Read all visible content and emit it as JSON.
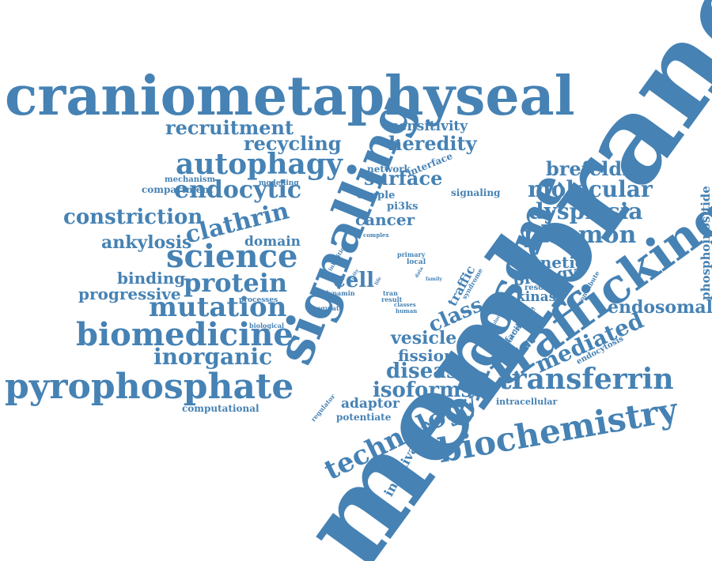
{
  "word_cloud": {
    "color": "#4682b4",
    "words": [
      {
        "text": "membrane",
        "size": 1,
        "rotation": "diagonal-up"
      },
      {
        "text": "craniometaphyseal",
        "size": 2,
        "rotation": "horizontal"
      },
      {
        "text": "signalling",
        "size": 3,
        "rotation": "diagonal-up"
      },
      {
        "text": "endosome",
        "size": 3,
        "rotation": "diagonal-up"
      },
      {
        "text": "trafficking",
        "size": 3,
        "rotation": "diagonal-up"
      },
      {
        "text": "pyrophosphate",
        "size": 3,
        "rotation": "horizontal"
      },
      {
        "text": "biochemistry",
        "size": 3,
        "rotation": "slight-tilt"
      },
      {
        "text": "science",
        "size": 3,
        "rotation": "horizontal"
      },
      {
        "text": "biomedicine",
        "size": 3,
        "rotation": "horizontal"
      },
      {
        "text": "autophagy",
        "size": 3,
        "rotation": "horizontal"
      },
      {
        "text": "technology",
        "size": 3,
        "rotation": "diagonal-up"
      },
      {
        "text": "transferrin",
        "size": 3,
        "rotation": "horizontal"
      },
      {
        "text": "mutation",
        "size": 3,
        "rotation": "horizontal"
      },
      {
        "text": "protein",
        "size": 3,
        "rotation": "horizontal"
      },
      {
        "text": "plasmon",
        "size": 4,
        "rotation": "horizontal"
      },
      {
        "text": "endocytic",
        "size": 4,
        "rotation": "horizontal"
      },
      {
        "text": "clathrin",
        "size": 4,
        "rotation": "diagonal-up"
      },
      {
        "text": "molecular",
        "size": 4,
        "rotation": "horizontal"
      },
      {
        "text": "dysplasia",
        "size": 4,
        "rotation": "horizontal"
      },
      {
        "text": "recruitment",
        "size": 4,
        "rotation": "horizontal"
      },
      {
        "text": "recycling",
        "size": 4,
        "rotation": "horizontal"
      },
      {
        "text": "heredity",
        "size": 4,
        "rotation": "horizontal"
      },
      {
        "text": "constriction",
        "size": 4,
        "rotation": "horizontal"
      },
      {
        "text": "inorganic",
        "size": 4,
        "rotation": "horizontal"
      },
      {
        "text": "brefeldin",
        "size": 4,
        "rotation": "horizontal"
      },
      {
        "text": "isoforms",
        "size": 4,
        "rotation": "horizontal"
      },
      {
        "text": "disease",
        "size": 4,
        "rotation": "horizontal"
      },
      {
        "text": "mediated",
        "size": 4,
        "rotation": "diagonal-up"
      },
      {
        "text": "surface",
        "size": 4,
        "rotation": "horizontal"
      },
      {
        "text": "cell",
        "size": 4,
        "rotation": "horizontal"
      },
      {
        "text": "class",
        "size": 4,
        "rotation": "diagonal-up"
      },
      {
        "text": "ankylosis",
        "size": 5,
        "rotation": "horizontal"
      },
      {
        "text": "binding",
        "size": 5,
        "rotation": "horizontal"
      },
      {
        "text": "progressive",
        "size": 5,
        "rotation": "horizontal"
      },
      {
        "text": "endosomal",
        "size": 5,
        "rotation": "horizontal"
      },
      {
        "text": "vesicle",
        "size": 5,
        "rotation": "horizontal"
      },
      {
        "text": "fission",
        "size": 5,
        "rotation": "horizontal"
      },
      {
        "text": "cancer",
        "size": 5,
        "rotation": "horizontal"
      },
      {
        "text": "genetic",
        "size": 5,
        "rotation": "horizontal"
      },
      {
        "text": "biology",
        "size": 5,
        "rotation": "horizontal"
      },
      {
        "text": "sensitivity",
        "size": 5,
        "rotation": "horizontal"
      },
      {
        "text": "domain",
        "size": 5,
        "rotation": "horizontal"
      },
      {
        "text": "adaptor",
        "size": 5,
        "rotation": "horizontal"
      },
      {
        "text": "kinase",
        "size": 5,
        "rotation": "horizontal"
      },
      {
        "text": "inactivation",
        "size": 5,
        "rotation": "diagonal-up"
      },
      {
        "text": "phosphoinositide",
        "size": 5,
        "rotation": "vertical-up"
      },
      {
        "text": "pi3ks",
        "size": 6,
        "rotation": "horizontal"
      },
      {
        "text": "network",
        "size": 6,
        "rotation": "horizontal"
      },
      {
        "text": "couple",
        "size": 6,
        "rotation": "horizontal"
      },
      {
        "text": "signaling",
        "size": 6,
        "rotation": "horizontal"
      },
      {
        "text": "compartment",
        "size": 6,
        "rotation": "horizontal"
      },
      {
        "text": "computational",
        "size": 6,
        "rotation": "horizontal"
      },
      {
        "text": "intracellular",
        "size": 6,
        "rotation": "horizontal"
      },
      {
        "text": "potentiate",
        "size": 6,
        "rotation": "horizontal"
      },
      {
        "text": "traffic",
        "size": 6,
        "rotation": "diagonal-up"
      },
      {
        "text": "resolution",
        "size": 6,
        "rotation": "horizontal"
      },
      {
        "text": "interface",
        "size": 6,
        "rotation": "diagonal-up"
      },
      {
        "text": "endocytosis",
        "size": 6,
        "rotation": "diagonal-up"
      },
      {
        "text": "facilitate",
        "size": 6,
        "rotation": "diagonal-up"
      },
      {
        "text": "mechanism",
        "size": 7,
        "rotation": "horizontal"
      },
      {
        "text": "modelling",
        "size": 7,
        "rotation": "horizontal"
      },
      {
        "text": "processes",
        "size": 7,
        "rotation": "horizontal"
      },
      {
        "text": "regulate",
        "size": 7,
        "rotation": "horizontal"
      },
      {
        "text": "biological",
        "size": 7,
        "rotation": "horizontal"
      },
      {
        "text": "regulator",
        "size": 7,
        "rotation": "diagonal-up"
      },
      {
        "text": "dynamin",
        "size": 7,
        "rotation": "horizontal"
      },
      {
        "text": "tran",
        "size": 7,
        "rotation": "horizontal"
      },
      {
        "text": "result",
        "size": 7,
        "rotation": "horizontal"
      },
      {
        "text": "classes",
        "size": 7,
        "rotation": "horizontal"
      },
      {
        "text": "human",
        "size": 7,
        "rotation": "horizontal"
      },
      {
        "text": "primary",
        "size": 7,
        "rotation": "horizontal"
      },
      {
        "text": "local",
        "size": 7,
        "rotation": "horizontal"
      },
      {
        "text": "complex",
        "size": 7,
        "rotation": "horizontal"
      },
      {
        "text": "inhibition",
        "size": 7,
        "rotation": "diagonal-up"
      },
      {
        "text": "function",
        "size": 7,
        "rotation": "diagonal-up"
      },
      {
        "text": "contribute",
        "size": 7,
        "rotation": "diagonal-up"
      },
      {
        "text": "syndrome",
        "size": 7,
        "rotation": "diagonal-up"
      },
      {
        "text": "family",
        "size": 8,
        "rotation": "horizontal"
      },
      {
        "text": "activity",
        "size": 8,
        "rotation": "diagonal-up"
      },
      {
        "text": "life",
        "size": 8,
        "rotation": "diagonal-up"
      },
      {
        "text": "data",
        "size": 8,
        "rotation": "diagonal-up"
      },
      {
        "text": "cellular",
        "size": 8,
        "rotation": "diagonal-up"
      }
    ]
  }
}
